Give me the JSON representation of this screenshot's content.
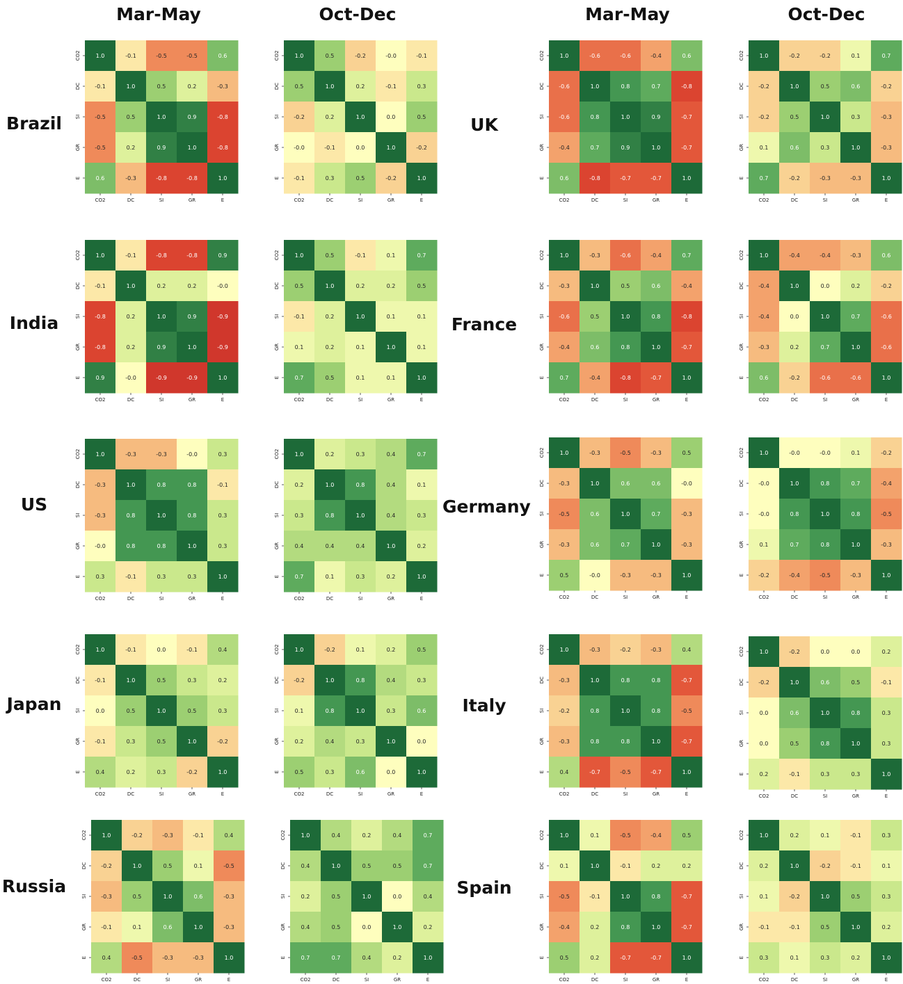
{
  "column_headers": [
    "Mar-May",
    "Oct-Dec",
    "Mar-May",
    "Oct-Dec"
  ],
  "variables": [
    "CO2",
    "DC",
    "SI",
    "GR",
    "E"
  ],
  "color_scale": {
    "low": "#c62a28",
    "mid": "#fefebe",
    "high": "#1d6a38",
    "range": [
      -1,
      1
    ]
  },
  "chart_data": [
    {
      "type": "heatmap",
      "country": "Brazil",
      "period": "Mar-May",
      "labels": [
        "CO2",
        "DC",
        "SI",
        "GR",
        "E"
      ],
      "matrix": [
        [
          1.0,
          -0.1,
          -0.5,
          -0.5,
          0.6
        ],
        [
          -0.1,
          1.0,
          0.5,
          0.2,
          -0.3
        ],
        [
          -0.5,
          0.5,
          1.0,
          0.9,
          -0.8
        ],
        [
          -0.5,
          0.2,
          0.9,
          1.0,
          -0.8
        ],
        [
          0.6,
          -0.3,
          -0.8,
          -0.8,
          1.0
        ]
      ]
    },
    {
      "type": "heatmap",
      "country": "Brazil",
      "period": "Oct-Dec",
      "labels": [
        "CO2",
        "DC",
        "SI",
        "GR",
        "E"
      ],
      "matrix": [
        [
          1.0,
          0.5,
          -0.2,
          -0.0,
          -0.1
        ],
        [
          0.5,
          1.0,
          0.2,
          -0.1,
          0.3
        ],
        [
          -0.2,
          0.2,
          1.0,
          0.0,
          0.5
        ],
        [
          -0.0,
          -0.1,
          0.0,
          1.0,
          -0.2
        ],
        [
          -0.1,
          0.3,
          0.5,
          -0.2,
          1.0
        ]
      ]
    },
    {
      "type": "heatmap",
      "country": "UK",
      "period": "Mar-May",
      "labels": [
        "CO2",
        "DC",
        "SI",
        "GR",
        "E"
      ],
      "matrix": [
        [
          1.0,
          -0.6,
          -0.6,
          -0.4,
          0.6
        ],
        [
          -0.6,
          1.0,
          0.8,
          0.7,
          -0.8
        ],
        [
          -0.6,
          0.8,
          1.0,
          0.9,
          -0.7
        ],
        [
          -0.4,
          0.7,
          0.9,
          1.0,
          -0.7
        ],
        [
          0.6,
          -0.8,
          -0.7,
          -0.7,
          1.0
        ]
      ]
    },
    {
      "type": "heatmap",
      "country": "UK",
      "period": "Oct-Dec",
      "labels": [
        "CO2",
        "DC",
        "SI",
        "GR",
        "E"
      ],
      "matrix": [
        [
          1.0,
          -0.2,
          -0.2,
          0.1,
          0.7
        ],
        [
          -0.2,
          1.0,
          0.5,
          0.6,
          -0.2
        ],
        [
          -0.2,
          0.5,
          1.0,
          0.3,
          -0.3
        ],
        [
          0.1,
          0.6,
          0.3,
          1.0,
          -0.3
        ],
        [
          0.7,
          -0.2,
          -0.3,
          -0.3,
          1.0
        ]
      ]
    },
    {
      "type": "heatmap",
      "country": "India",
      "period": "Mar-May",
      "labels": [
        "CO2",
        "DC",
        "SI",
        "GR",
        "E"
      ],
      "matrix": [
        [
          1.0,
          -0.1,
          -0.8,
          -0.8,
          0.9
        ],
        [
          -0.1,
          1.0,
          0.2,
          0.2,
          -0.0
        ],
        [
          -0.8,
          0.2,
          1.0,
          0.9,
          -0.9
        ],
        [
          -0.8,
          0.2,
          0.9,
          1.0,
          -0.9
        ],
        [
          0.9,
          -0.0,
          -0.9,
          -0.9,
          1.0
        ]
      ]
    },
    {
      "type": "heatmap",
      "country": "India",
      "period": "Oct-Dec",
      "labels": [
        "CO2",
        "DC",
        "SI",
        "GR",
        "E"
      ],
      "matrix": [
        [
          1.0,
          0.5,
          -0.1,
          0.1,
          0.7
        ],
        [
          0.5,
          1.0,
          0.2,
          0.2,
          0.5
        ],
        [
          -0.1,
          0.2,
          1.0,
          0.1,
          0.1
        ],
        [
          0.1,
          0.2,
          0.1,
          1.0,
          0.1
        ],
        [
          0.7,
          0.5,
          0.1,
          0.1,
          1.0
        ]
      ]
    },
    {
      "type": "heatmap",
      "country": "France",
      "period": "Mar-May",
      "labels": [
        "CO2",
        "DC",
        "SI",
        "GR",
        "E"
      ],
      "matrix": [
        [
          1.0,
          -0.3,
          -0.6,
          -0.4,
          0.7
        ],
        [
          -0.3,
          1.0,
          0.5,
          0.6,
          -0.4
        ],
        [
          -0.6,
          0.5,
          1.0,
          0.8,
          -0.8
        ],
        [
          -0.4,
          0.6,
          0.8,
          1.0,
          -0.7
        ],
        [
          0.7,
          -0.4,
          -0.8,
          -0.7,
          1.0
        ]
      ]
    },
    {
      "type": "heatmap",
      "country": "France",
      "period": "Oct-Dec",
      "labels": [
        "CO2",
        "DC",
        "SI",
        "GR",
        "E"
      ],
      "matrix": [
        [
          1.0,
          -0.4,
          -0.4,
          -0.3,
          0.6
        ],
        [
          -0.4,
          1.0,
          0.0,
          0.2,
          -0.2
        ],
        [
          -0.4,
          0.0,
          1.0,
          0.7,
          -0.6
        ],
        [
          -0.3,
          0.2,
          0.7,
          1.0,
          -0.6
        ],
        [
          0.6,
          -0.2,
          -0.6,
          -0.6,
          1.0
        ]
      ]
    },
    {
      "type": "heatmap",
      "country": "US",
      "period": "Mar-May",
      "labels": [
        "CO2",
        "DC",
        "SI",
        "GR",
        "E"
      ],
      "matrix": [
        [
          1.0,
          -0.3,
          -0.3,
          -0.0,
          0.3
        ],
        [
          -0.3,
          1.0,
          0.8,
          0.8,
          -0.1
        ],
        [
          -0.3,
          0.8,
          1.0,
          0.8,
          0.3
        ],
        [
          -0.0,
          0.8,
          0.8,
          1.0,
          0.3
        ],
        [
          0.3,
          -0.1,
          0.3,
          0.3,
          1.0
        ]
      ]
    },
    {
      "type": "heatmap",
      "country": "US",
      "period": "Oct-Dec",
      "labels": [
        "CO2",
        "DC",
        "SI",
        "GR",
        "E"
      ],
      "matrix": [
        [
          1.0,
          0.2,
          0.3,
          0.4,
          0.7
        ],
        [
          0.2,
          1.0,
          0.8,
          0.4,
          0.1
        ],
        [
          0.3,
          0.8,
          1.0,
          0.4,
          0.3
        ],
        [
          0.4,
          0.4,
          0.4,
          1.0,
          0.2
        ],
        [
          0.7,
          0.1,
          0.3,
          0.2,
          1.0
        ]
      ]
    },
    {
      "type": "heatmap",
      "country": "Germany",
      "period": "Mar-May",
      "labels": [
        "CO2",
        "DC",
        "SI",
        "GR",
        "E"
      ],
      "matrix": [
        [
          1.0,
          -0.3,
          -0.5,
          -0.3,
          0.5
        ],
        [
          -0.3,
          1.0,
          0.6,
          0.6,
          -0.0
        ],
        [
          -0.5,
          0.6,
          1.0,
          0.7,
          -0.3
        ],
        [
          -0.3,
          0.6,
          0.7,
          1.0,
          -0.3
        ],
        [
          0.5,
          -0.0,
          -0.3,
          -0.3,
          1.0
        ]
      ]
    },
    {
      "type": "heatmap",
      "country": "Germany",
      "period": "Oct-Dec",
      "labels": [
        "CO2",
        "DC",
        "SI",
        "GR",
        "E"
      ],
      "matrix": [
        [
          1.0,
          -0.0,
          -0.0,
          0.1,
          -0.2
        ],
        [
          -0.0,
          1.0,
          0.8,
          0.7,
          -0.4
        ],
        [
          -0.0,
          0.8,
          1.0,
          0.8,
          -0.5
        ],
        [
          0.1,
          0.7,
          0.8,
          1.0,
          -0.3
        ],
        [
          -0.2,
          -0.4,
          -0.5,
          -0.3,
          1.0
        ]
      ]
    },
    {
      "type": "heatmap",
      "country": "Japan",
      "period": "Mar-May",
      "labels": [
        "CO2",
        "DC",
        "SI",
        "GR",
        "E"
      ],
      "matrix": [
        [
          1.0,
          -0.1,
          0.0,
          -0.1,
          0.4
        ],
        [
          -0.1,
          1.0,
          0.5,
          0.3,
          0.2
        ],
        [
          0.0,
          0.5,
          1.0,
          0.5,
          0.3
        ],
        [
          -0.1,
          0.3,
          0.5,
          1.0,
          -0.2
        ],
        [
          0.4,
          0.2,
          0.3,
          -0.2,
          1.0
        ]
      ]
    },
    {
      "type": "heatmap",
      "country": "Japan",
      "period": "Oct-Dec",
      "labels": [
        "CO2",
        "DC",
        "SI",
        "GR",
        "E"
      ],
      "matrix": [
        [
          1.0,
          -0.2,
          0.1,
          0.2,
          0.5
        ],
        [
          -0.2,
          1.0,
          0.8,
          0.4,
          0.3
        ],
        [
          0.1,
          0.8,
          1.0,
          0.3,
          0.6
        ],
        [
          0.2,
          0.4,
          0.3,
          1.0,
          0.0
        ],
        [
          0.5,
          0.3,
          0.6,
          0.0,
          1.0
        ]
      ]
    },
    {
      "type": "heatmap",
      "country": "Italy",
      "period": "Mar-May",
      "labels": [
        "CO2",
        "DC",
        "SI",
        "GR",
        "E"
      ],
      "matrix": [
        [
          1.0,
          -0.3,
          -0.2,
          -0.3,
          0.4
        ],
        [
          -0.3,
          1.0,
          0.8,
          0.8,
          -0.7
        ],
        [
          -0.2,
          0.8,
          1.0,
          0.8,
          -0.5
        ],
        [
          -0.3,
          0.8,
          0.8,
          1.0,
          -0.7
        ],
        [
          0.4,
          -0.7,
          -0.5,
          -0.7,
          1.0
        ]
      ]
    },
    {
      "type": "heatmap",
      "country": "Italy",
      "period": "Oct-Dec",
      "labels": [
        "CO2",
        "DC",
        "SI",
        "GR",
        "E"
      ],
      "matrix": [
        [
          1.0,
          -0.2,
          0.0,
          0.0,
          0.2
        ],
        [
          -0.2,
          1.0,
          0.6,
          0.5,
          -0.1
        ],
        [
          0.0,
          0.6,
          1.0,
          0.8,
          0.3
        ],
        [
          0.0,
          0.5,
          0.8,
          1.0,
          0.3
        ],
        [
          0.2,
          -0.1,
          0.3,
          0.3,
          1.0
        ]
      ]
    },
    {
      "type": "heatmap",
      "country": "Russia",
      "period": "Mar-May",
      "labels": [
        "CO2",
        "DC",
        "SI",
        "GR",
        "E"
      ],
      "matrix": [
        [
          1.0,
          -0.2,
          -0.3,
          -0.1,
          0.4
        ],
        [
          -0.2,
          1.0,
          0.5,
          0.1,
          -0.5
        ],
        [
          -0.3,
          0.5,
          1.0,
          0.6,
          -0.3
        ],
        [
          -0.1,
          0.1,
          0.6,
          1.0,
          -0.3
        ],
        [
          0.4,
          -0.5,
          -0.3,
          -0.3,
          1.0
        ]
      ]
    },
    {
      "type": "heatmap",
      "country": "Russia",
      "period": "Oct-Dec",
      "labels": [
        "CO2",
        "DC",
        "SI",
        "GR",
        "E"
      ],
      "matrix": [
        [
          1.0,
          0.4,
          0.2,
          0.4,
          0.7
        ],
        [
          0.4,
          1.0,
          0.5,
          0.5,
          0.7
        ],
        [
          0.2,
          0.5,
          1.0,
          0.0,
          0.4
        ],
        [
          0.4,
          0.5,
          0.0,
          1.0,
          0.2
        ],
        [
          0.7,
          0.7,
          0.4,
          0.2,
          1.0
        ]
      ]
    },
    {
      "type": "heatmap",
      "country": "Spain",
      "period": "Mar-May",
      "labels": [
        "CO2",
        "DC",
        "SI",
        "GR",
        "E"
      ],
      "matrix": [
        [
          1.0,
          0.1,
          -0.5,
          -0.4,
          0.5
        ],
        [
          0.1,
          1.0,
          -0.1,
          0.2,
          0.2
        ],
        [
          -0.5,
          -0.1,
          1.0,
          0.8,
          -0.7
        ],
        [
          -0.4,
          0.2,
          0.8,
          1.0,
          -0.7
        ],
        [
          0.5,
          0.2,
          -0.7,
          -0.7,
          1.0
        ]
      ]
    },
    {
      "type": "heatmap",
      "country": "Spain",
      "period": "Oct-Dec",
      "labels": [
        "CO2",
        "DC",
        "SI",
        "GR",
        "E"
      ],
      "matrix": [
        [
          1.0,
          0.2,
          0.1,
          -0.1,
          0.3
        ],
        [
          0.2,
          1.0,
          -0.2,
          -0.1,
          0.1
        ],
        [
          0.1,
          -0.2,
          1.0,
          0.5,
          0.3
        ],
        [
          -0.1,
          -0.1,
          0.5,
          1.0,
          0.2
        ],
        [
          0.3,
          0.1,
          0.3,
          0.2,
          1.0
        ]
      ]
    }
  ]
}
